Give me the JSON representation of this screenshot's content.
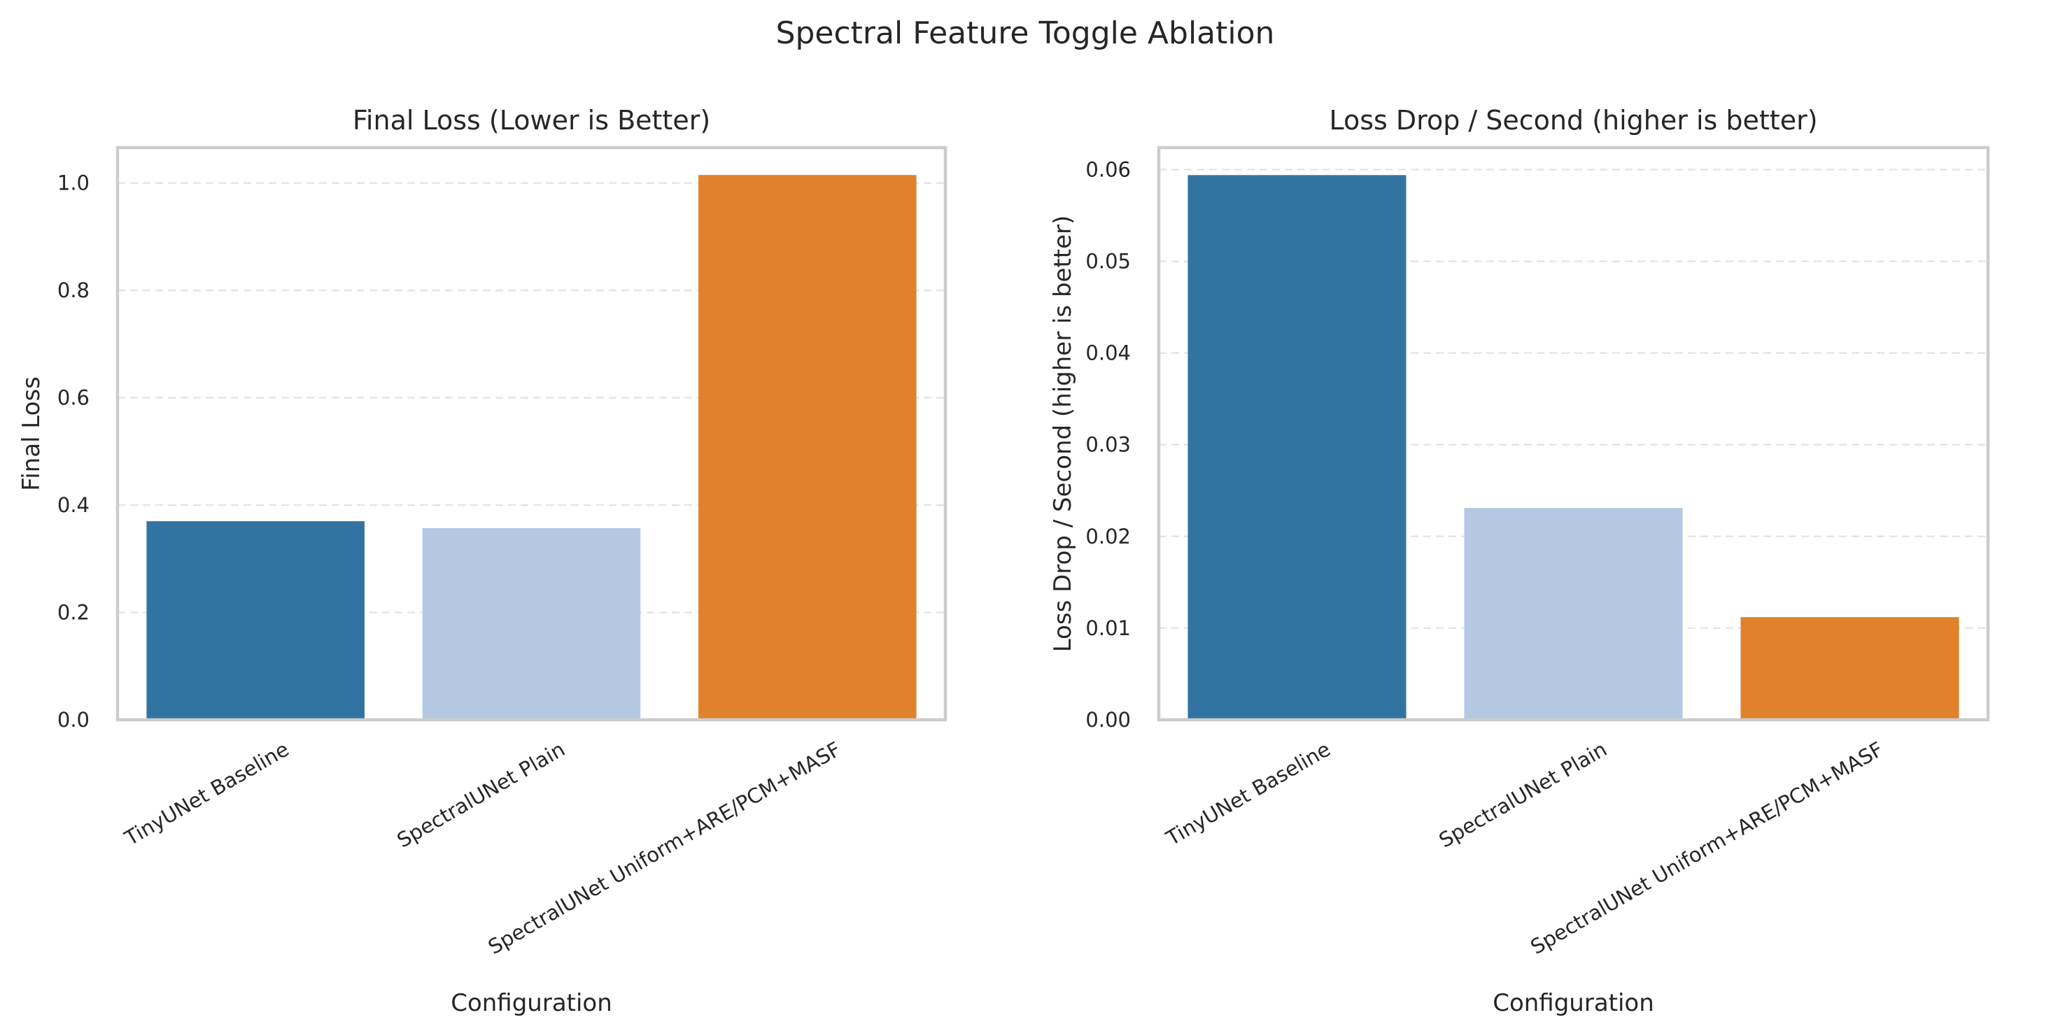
{
  "suptitle": "Spectral Feature Toggle Ablation",
  "chart_data": [
    {
      "type": "bar",
      "title": "Final Loss (Lower is Better)",
      "xlabel": "Configuration",
      "ylabel": "Final Loss",
      "categories": [
        "TinyUNet Baseline",
        "SpectralUNet Plain",
        "SpectralUNet Uniform+ARE/PCM+MASF"
      ],
      "values": [
        0.37,
        0.357,
        1.015
      ],
      "colors": [
        "#3274a1",
        "#b3c8e2",
        "#e1812c"
      ],
      "ylim": [
        0,
        1.066
      ],
      "yticks": [
        0.0,
        0.2,
        0.4,
        0.6,
        0.8,
        1.0
      ],
      "ytick_labels": [
        "0.0",
        "0.2",
        "0.4",
        "0.6",
        "0.8",
        "1.0"
      ],
      "grid": "y dashed",
      "legend": "none"
    },
    {
      "type": "bar",
      "title": "Loss Drop / Second (higher is better)",
      "xlabel": "Configuration",
      "ylabel": "Loss Drop / Second (higher is better)",
      "categories": [
        "TinyUNet Baseline",
        "SpectralUNet Plain",
        "SpectralUNet Uniform+ARE/PCM+MASF"
      ],
      "values": [
        0.0594,
        0.0231,
        0.0112
      ],
      "colors": [
        "#3274a1",
        "#b3c8e2",
        "#e1812c"
      ],
      "ylim": [
        0,
        0.0624
      ],
      "yticks": [
        0.0,
        0.01,
        0.02,
        0.03,
        0.04,
        0.05,
        0.06
      ],
      "ytick_labels": [
        "0.00",
        "0.01",
        "0.02",
        "0.03",
        "0.04",
        "0.05",
        "0.06"
      ],
      "grid": "y dashed",
      "legend": "none"
    }
  ]
}
